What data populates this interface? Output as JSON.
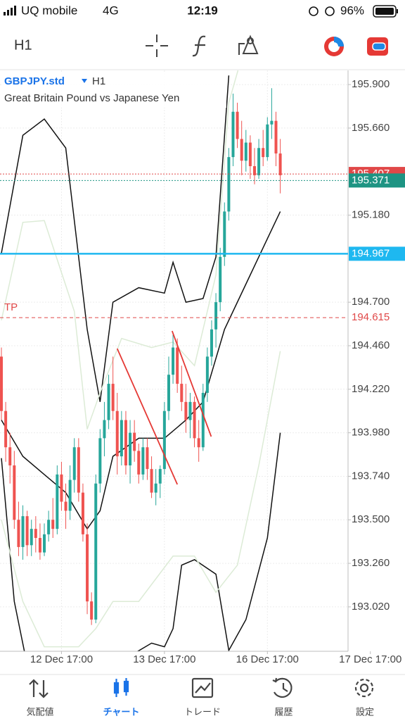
{
  "status_bar": {
    "carrier": "UQ mobile",
    "network": "4G",
    "time": "12:19",
    "battery": "96%"
  },
  "toolbar": {
    "timeframe": "H1"
  },
  "chart_data": {
    "type": "candlestick",
    "symbol": "GBPJPY.std",
    "timeframe": "H1",
    "description": "Great Britain Pound vs Japanese Yen",
    "xlim": [
      -0.33,
      80.8
    ],
    "xticks": [
      {
        "value": 14,
        "label": "12 Dec 17:00"
      },
      {
        "value": 38,
        "label": "13 Dec 17:00"
      },
      {
        "value": 62,
        "label": "16 Dec 17:00"
      },
      {
        "value": 86,
        "label": "17 Dec 17:00"
      }
    ],
    "ylim": [
      192.775,
      195.978
    ],
    "yticks": [
      {
        "value": 195.9,
        "label": "195.900"
      },
      {
        "value": 195.66,
        "label": "195.660"
      },
      {
        "value": 195.18,
        "label": "195.180"
      },
      {
        "value": 194.7,
        "label": "194.700"
      },
      {
        "value": 194.46,
        "label": "194.460"
      },
      {
        "value": 194.22,
        "label": "194.220"
      },
      {
        "value": 193.98,
        "label": "193.980"
      },
      {
        "value": 193.74,
        "label": "193.740"
      },
      {
        "value": 193.5,
        "label": "193.500"
      },
      {
        "value": 193.26,
        "label": "193.260"
      },
      {
        "value": 193.02,
        "label": "193.020"
      }
    ],
    "grid": true,
    "colors": {
      "up": "#26a69a",
      "down": "#ef5350"
    },
    "candles": {
      "x": [
        0,
        1,
        2,
        3,
        4,
        5,
        6,
        7,
        8,
        9,
        10,
        11,
        12,
        13,
        14,
        15,
        16,
        17,
        18,
        19,
        20,
        21,
        22,
        23,
        24,
        25,
        26,
        27,
        28,
        29,
        30,
        31,
        32,
        33,
        34,
        35,
        36,
        37,
        38,
        39,
        40,
        41,
        42,
        43,
        44,
        45,
        46,
        47,
        48,
        49,
        50,
        51,
        52,
        53,
        54,
        55,
        56,
        57,
        58,
        59,
        60,
        61,
        62,
        63,
        64,
        65
      ],
      "open": [
        194.4,
        194.1,
        193.9,
        193.8,
        193.5,
        193.35,
        193.52,
        193.36,
        193.45,
        193.4,
        193.32,
        193.42,
        193.5,
        193.45,
        193.75,
        193.6,
        193.55,
        193.72,
        193.9,
        193.65,
        193.42,
        193.05,
        192.95,
        193.7,
        193.95,
        194.05,
        194.25,
        194.1,
        193.85,
        194.05,
        193.8,
        193.98,
        193.88,
        193.75,
        193.9,
        193.78,
        193.65,
        193.7,
        193.78,
        194.1,
        194.3,
        194.45,
        194.25,
        194.15,
        194.05,
        194.15,
        193.95,
        193.9,
        194.2,
        194.4,
        194.55,
        194.7,
        194.95,
        195.2,
        195.5,
        195.75,
        195.6,
        195.48,
        195.58,
        195.45,
        195.4,
        195.55,
        195.5,
        195.68,
        195.7,
        195.52
      ],
      "high": [
        194.45,
        194.15,
        193.98,
        193.88,
        193.6,
        193.58,
        193.55,
        193.5,
        193.52,
        193.48,
        193.48,
        193.55,
        193.62,
        193.8,
        193.82,
        193.7,
        193.8,
        193.95,
        193.95,
        193.7,
        193.48,
        193.1,
        193.75,
        194.0,
        194.15,
        194.3,
        194.4,
        194.2,
        194.1,
        194.1,
        194.05,
        194.05,
        193.92,
        193.95,
        193.95,
        193.85,
        193.78,
        193.8,
        194.15,
        194.4,
        194.52,
        194.5,
        194.35,
        194.25,
        194.2,
        194.18,
        194.05,
        194.25,
        194.45,
        194.6,
        194.75,
        195.0,
        195.25,
        195.55,
        195.85,
        195.8,
        195.7,
        195.65,
        195.62,
        195.55,
        195.6,
        195.65,
        195.72,
        195.88,
        195.75,
        195.6
      ],
      "low": [
        194.05,
        193.82,
        193.7,
        193.45,
        193.3,
        193.28,
        193.3,
        193.3,
        193.32,
        193.28,
        193.3,
        193.38,
        193.4,
        193.42,
        193.55,
        193.45,
        193.5,
        193.65,
        193.6,
        193.38,
        192.98,
        192.92,
        192.93,
        193.65,
        193.85,
        194.0,
        194.05,
        193.75,
        193.8,
        193.75,
        193.7,
        193.82,
        193.7,
        193.72,
        193.72,
        193.62,
        193.58,
        193.62,
        193.75,
        194.05,
        194.25,
        194.2,
        194.1,
        193.98,
        193.95,
        193.9,
        193.82,
        193.88,
        194.15,
        194.35,
        194.45,
        194.65,
        194.9,
        195.15,
        195.45,
        195.55,
        195.4,
        195.42,
        195.38,
        195.35,
        195.38,
        195.45,
        195.48,
        195.6,
        195.45,
        195.3
      ],
      "close": [
        194.1,
        193.9,
        193.8,
        193.5,
        193.35,
        193.52,
        193.36,
        193.45,
        193.4,
        193.32,
        193.42,
        193.5,
        193.45,
        193.75,
        193.6,
        193.55,
        193.72,
        193.9,
        193.65,
        193.42,
        193.05,
        192.95,
        193.7,
        193.95,
        194.05,
        194.25,
        194.1,
        193.85,
        194.05,
        193.8,
        193.98,
        193.88,
        193.75,
        193.9,
        193.78,
        193.65,
        193.7,
        193.78,
        194.1,
        194.3,
        194.45,
        194.25,
        194.15,
        194.05,
        194.15,
        193.95,
        193.9,
        194.2,
        194.4,
        194.55,
        194.7,
        194.95,
        195.2,
        195.5,
        195.75,
        195.6,
        195.48,
        195.58,
        195.45,
        195.4,
        195.55,
        195.5,
        195.68,
        195.7,
        195.52,
        195.4
      ]
    },
    "indicators": [
      {
        "color": "#111111",
        "x": [
          0,
          5,
          10,
          15,
          20,
          23,
          26,
          32,
          38,
          40,
          43,
          47,
          50,
          53
        ],
        "values": [
          194.97,
          195.62,
          195.71,
          195.55,
          194.55,
          194.15,
          194.7,
          194.78,
          194.75,
          194.92,
          194.7,
          194.72,
          194.95,
          195.95
        ]
      },
      {
        "color": "#111111",
        "x": [
          0,
          5,
          10,
          15,
          20,
          23,
          26,
          32,
          38,
          43,
          47,
          52,
          58,
          65
        ],
        "values": [
          194.05,
          193.85,
          193.75,
          193.65,
          193.45,
          193.55,
          193.85,
          193.95,
          193.95,
          194.05,
          194.15,
          194.55,
          194.85,
          195.2
        ]
      },
      {
        "color": "#111111",
        "x": [
          0,
          3,
          6,
          18,
          30,
          35,
          38,
          40,
          42,
          45,
          50,
          53,
          57,
          62,
          65
        ],
        "values": [
          193.84,
          193.05,
          192.7,
          null,
          192.75,
          192.82,
          192.8,
          192.9,
          193.25,
          193.28,
          193.2,
          192.78,
          192.95,
          193.4,
          193.98
        ]
      },
      {
        "color": "#dcebd6",
        "x": [
          0,
          5,
          10,
          17,
          20,
          23,
          28,
          35,
          40,
          45,
          50,
          53,
          56
        ],
        "values": [
          194.6,
          195.14,
          195.15,
          194.65,
          194.0,
          194.2,
          194.5,
          194.45,
          194.48,
          194.35,
          194.85,
          195.8,
          196.05
        ]
      },
      {
        "color": "#dcebd6",
        "x": [
          0,
          5,
          10,
          18,
          22,
          26,
          32,
          40,
          45,
          50,
          55,
          60,
          65
        ],
        "values": [
          193.5,
          193.05,
          192.8,
          192.8,
          192.9,
          193.05,
          193.05,
          193.3,
          193.3,
          193.1,
          193.25,
          193.8,
          194.43
        ]
      }
    ],
    "trendlines": [
      {
        "color": "#e53935",
        "x": [
          27,
          41
        ],
        "values": [
          194.444,
          193.695
        ]
      },
      {
        "color": "#e53935",
        "x": [
          39.8,
          48.9
        ],
        "values": [
          194.541,
          193.959
        ]
      }
    ],
    "levels": [
      {
        "value": 195.407,
        "label": "195.407",
        "color": "#e04848",
        "dash": "dotted"
      },
      {
        "value": 195.371,
        "label": "195.371",
        "color": "#1e9483",
        "dash": "dotted"
      },
      {
        "value": 194.967,
        "label": "194.967",
        "color": "#1eb8f0",
        "dash": "solid"
      },
      {
        "value": 194.615,
        "label": "194.615",
        "name": "TP",
        "color": "#e04848",
        "dash": "dashed"
      }
    ]
  },
  "nav": {
    "active": 1,
    "items": [
      {
        "label": "気配値"
      },
      {
        "label": "チャート"
      },
      {
        "label": "トレード"
      },
      {
        "label": "履歴"
      },
      {
        "label": "設定"
      }
    ]
  }
}
